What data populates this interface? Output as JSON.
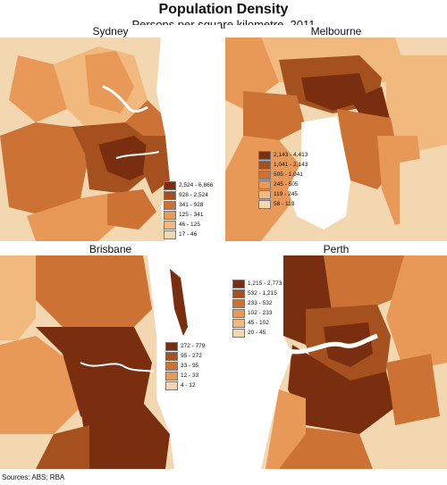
{
  "title": "Population Density",
  "subtitle": "Persons per square kilometre, 2011",
  "source": "Sources: ABS; RBA",
  "colors": {
    "c1": "#F2D7B0",
    "c2": "#F2B97E",
    "c3": "#E89958",
    "c4": "#CC7235",
    "c5": "#A5511F",
    "c6": "#7A2E10",
    "water": "#ffffff"
  },
  "panels": {
    "sydney": {
      "name": "Sydney",
      "legend": [
        "2,524 - 6,866",
        "928 - 2,524",
        "341 - 928",
        "125 - 341",
        "46 - 125",
        "17 - 46"
      ]
    },
    "melbourne": {
      "name": "Melbourne",
      "legend": [
        "2,143 - 4,413",
        "1,041 - 2,143",
        "505 - 1,041",
        "245 - 505",
        "119 - 245",
        "58 - 119"
      ]
    },
    "brisbane": {
      "name": "Brisbane",
      "legend": [
        "272 - 779",
        "95 - 272",
        "33 - 95",
        "12 - 33",
        "4 - 12"
      ]
    },
    "perth": {
      "name": "Perth",
      "legend": [
        "1,215 - 2,773",
        "532 - 1,215",
        "233 - 532",
        "102 - 233",
        "45 - 102",
        "20 - 45"
      ]
    }
  }
}
